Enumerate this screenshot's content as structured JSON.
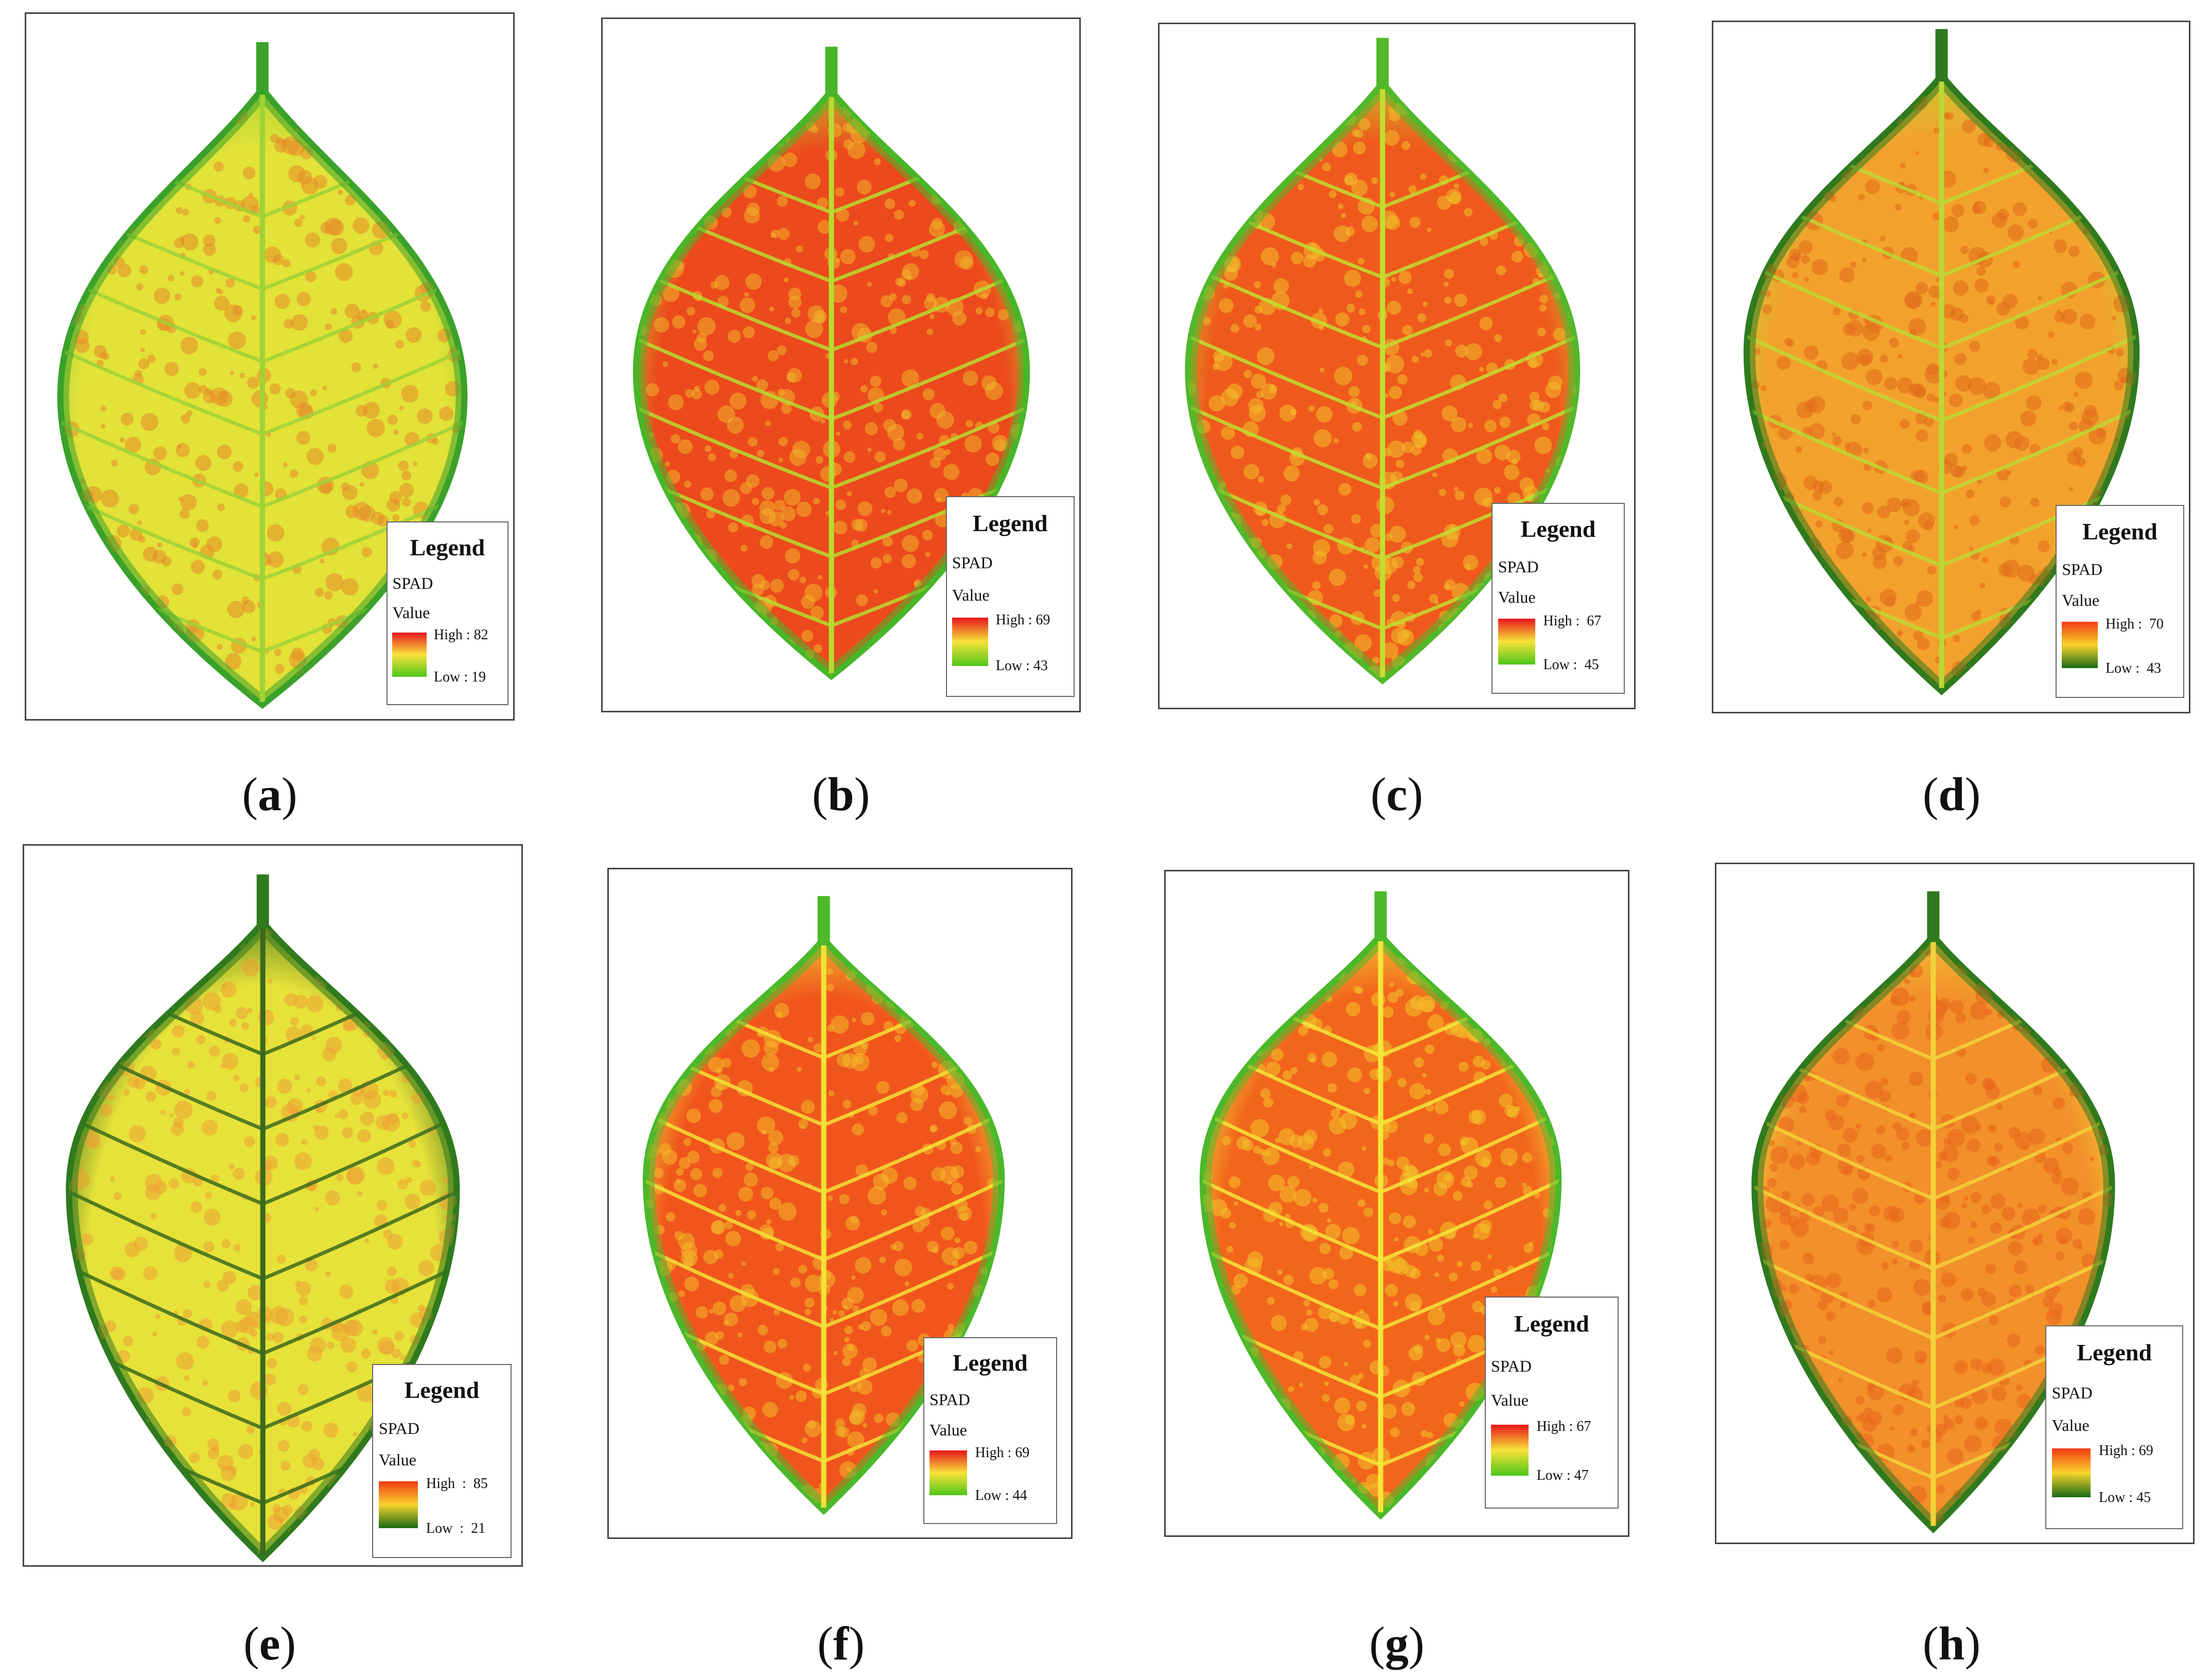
{
  "figure": {
    "panels": [
      {
        "id": "a",
        "label": "a",
        "legend": {
          "title": "Legend",
          "field": "SPAD",
          "value_label": "Value",
          "high": "High : 82",
          "low": "Low : 19"
        },
        "ramp": [
          "#e8141c",
          "#f7e33a",
          "#4ec61a"
        ],
        "leaf_colors": {
          "blade": "#e2e238",
          "speckle": "#e88a2a",
          "edge": "#3aa22a",
          "vein": "#9fd236"
        }
      },
      {
        "id": "b",
        "label": "b",
        "legend": {
          "title": "Legend",
          "field": "SPAD",
          "value_label": "Value",
          "high": "High : 69",
          "low": "Low : 43"
        },
        "ramp": [
          "#e8141c",
          "#f7e33a",
          "#4ec61a"
        ],
        "leaf_colors": {
          "blade": "#ec4a1c",
          "speckle": "#f0b22a",
          "edge": "#48b628",
          "vein": "#b6dc30"
        }
      },
      {
        "id": "c",
        "label": "c",
        "legend": {
          "title": "Legend",
          "field": "SPAD",
          "value_label": "Value",
          "high": "High :  67",
          "low": "Low :  45"
        },
        "ramp": [
          "#e8141c",
          "#f7e33a",
          "#4ec61a"
        ],
        "leaf_colors": {
          "blade": "#ef5a1c",
          "speckle": "#f0c02a",
          "edge": "#52b82a",
          "vein": "#c0de30"
        }
      },
      {
        "id": "d",
        "label": "d",
        "legend": {
          "title": "Legend",
          "field": "SPAD",
          "value_label": "Value",
          "high": "High :  70",
          "low": "Low :  43"
        },
        "ramp": [
          "#f23a14",
          "#f7d42c",
          "#1a6a14"
        ],
        "leaf_colors": {
          "blade": "#f2a22c",
          "speckle": "#e26a1c",
          "edge": "#2f7a1e",
          "vein": "#bcd834"
        }
      },
      {
        "id": "e",
        "label": "e",
        "legend": {
          "title": "Legend",
          "field": "SPAD",
          "value_label": "Value",
          "high": "High  :  85",
          "low": "Low  :  21"
        },
        "ramp": [
          "#f23a14",
          "#f7d42c",
          "#1a6a14"
        ],
        "leaf_colors": {
          "blade": "#e6e23a",
          "speckle": "#eda033",
          "edge": "#2f7a1e",
          "vein": "#3a6a1c"
        }
      },
      {
        "id": "f",
        "label": "f",
        "legend": {
          "title": "Legend",
          "field": "SPAD",
          "value_label": "Value",
          "high": "High : 69",
          "low": "Low : 44"
        },
        "ramp": [
          "#e8141c",
          "#f7e33a",
          "#4ec61a"
        ],
        "leaf_colors": {
          "blade": "#f0561c",
          "speckle": "#f2ba2a",
          "edge": "#4cb82a",
          "vein": "#f2e236"
        }
      },
      {
        "id": "g",
        "label": "g",
        "legend": {
          "title": "Legend",
          "field": "SPAD",
          "value_label": "Value",
          "high": "High : 67",
          "low": "Low : 47"
        },
        "ramp": [
          "#e8141c",
          "#f7e33a",
          "#4ec61a"
        ],
        "leaf_colors": {
          "blade": "#f2661c",
          "speckle": "#f2c22a",
          "edge": "#4cb82a",
          "vein": "#f4e638"
        }
      },
      {
        "id": "h",
        "label": "h",
        "legend": {
          "title": "Legend",
          "field": "SPAD",
          "value_label": "Value",
          "high": "High : 69",
          "low": "Low : 45"
        },
        "ramp": [
          "#f23a14",
          "#f7d42c",
          "#1a6a14"
        ],
        "leaf_colors": {
          "blade": "#f2902a",
          "speckle": "#e9641c",
          "edge": "#2f7a1e",
          "vein": "#f2d23a"
        }
      }
    ]
  }
}
